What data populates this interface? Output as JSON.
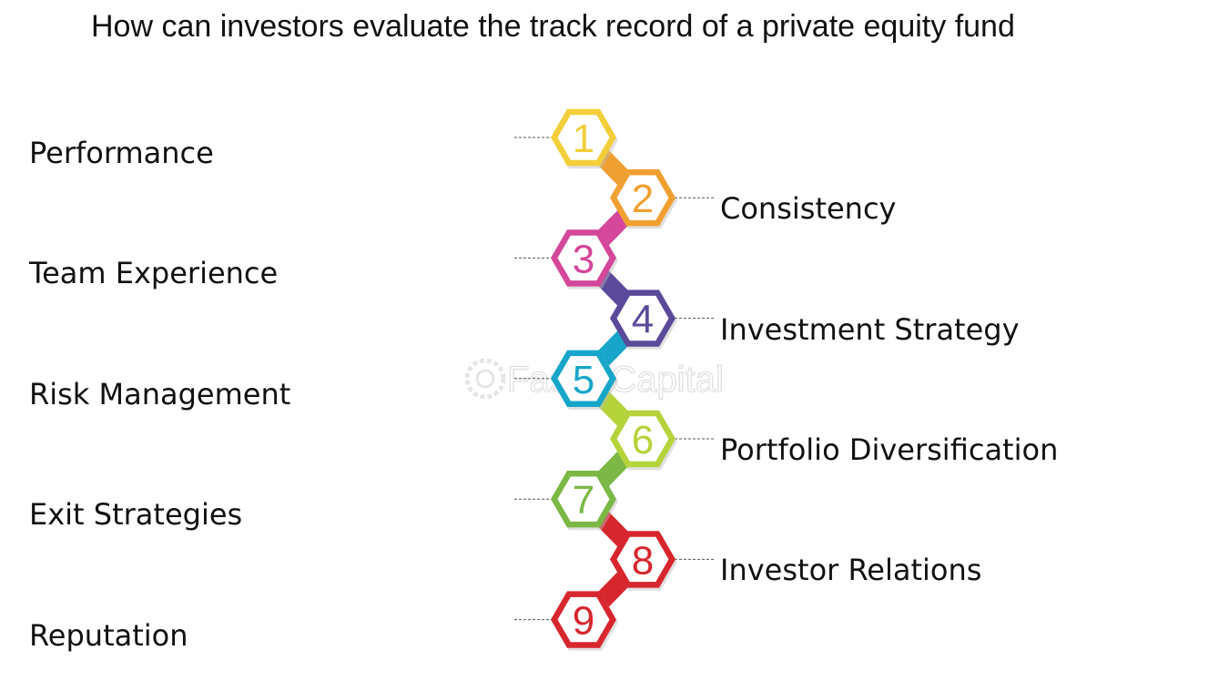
{
  "title": "How can investors evaluate the track record of a private equity fund",
  "watermark": "FasterCapital",
  "steps": [
    {
      "number": "1",
      "label": "Performance",
      "color": "#F2CF3A",
      "side": "left"
    },
    {
      "number": "2",
      "label": "Consistency",
      "color": "#F0A030",
      "side": "right"
    },
    {
      "number": "3",
      "label": "Team Experience",
      "color": "#D4479A",
      "side": "left"
    },
    {
      "number": "4",
      "label": "Investment Strategy",
      "color": "#5B4A9A",
      "side": "right"
    },
    {
      "number": "5",
      "label": "Risk Management",
      "color": "#17A6C9",
      "side": "left"
    },
    {
      "number": "6",
      "label": "Portfolio Diversification",
      "color": "#B5D33A",
      "side": "right"
    },
    {
      "number": "7",
      "label": "Exit Strategies",
      "color": "#7BB845",
      "side": "left"
    },
    {
      "number": "8",
      "label": "Investor Relations",
      "color": "#D7262E",
      "side": "right"
    },
    {
      "number": "9",
      "label": "Reputation",
      "color": "#D7262E",
      "side": "left"
    }
  ]
}
